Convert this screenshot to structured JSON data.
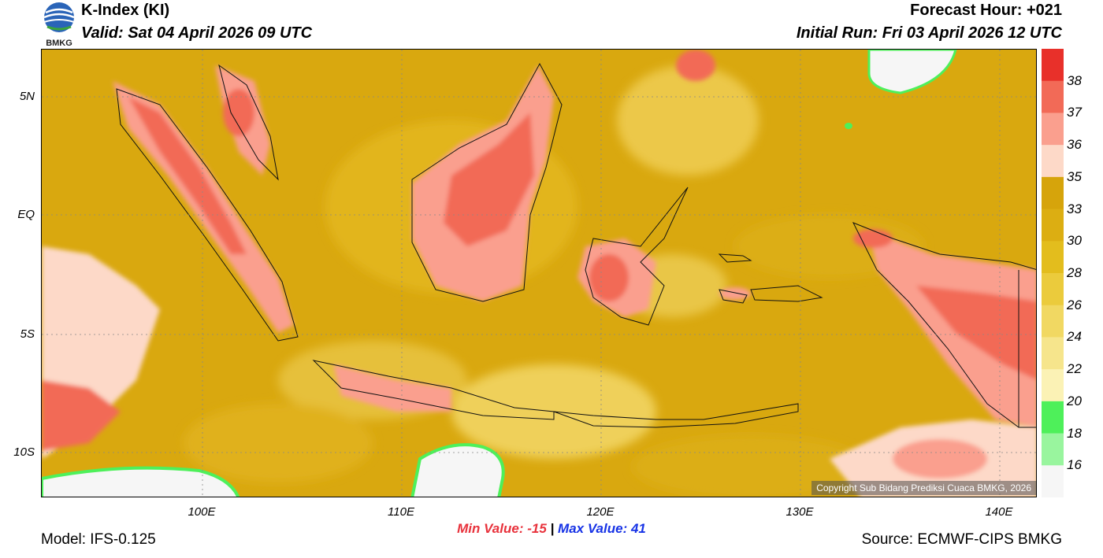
{
  "header": {
    "title": "K-Index (KI)",
    "valid": "Valid: Sat 04 April 2026 09 UTC",
    "forecast_hour": "Forecast Hour: +021",
    "initial_run": "Initial Run: Fri 03 April 2026 12 UTC",
    "logo_text": "BMKG"
  },
  "map": {
    "lat_labels": [
      "5N",
      "EQ",
      "5S",
      "10S"
    ],
    "lon_labels": [
      "100E",
      "110E",
      "120E",
      "130E",
      "140E"
    ],
    "copyright": "Copyright Sub Bidang Prediksi Cuaca BMKG, 2026"
  },
  "stats": {
    "min_label": "Min Value:",
    "min_value": "-15",
    "separator": "|",
    "max_label": "Max Value:",
    "max_value": "41"
  },
  "colorbar": {
    "ticks": [
      "38",
      "37",
      "36",
      "35",
      "33",
      "30",
      "28",
      "26",
      "24",
      "22",
      "20",
      "18",
      "16"
    ],
    "colors": [
      "#e8302a",
      "#f26a57",
      "#fa9f8e",
      "#fdd9c8",
      "#d6a40b",
      "#dcae12",
      "#e3bd1d",
      "#ebcb3c",
      "#f1d862",
      "#f6e58c",
      "#fbf2b5",
      "#4ef05a",
      "#99f59e",
      "#f6f6f6"
    ]
  },
  "footer": {
    "model": "Model: IFS-0.125",
    "source": "Source: ECMWF-CIPS BMKG"
  }
}
